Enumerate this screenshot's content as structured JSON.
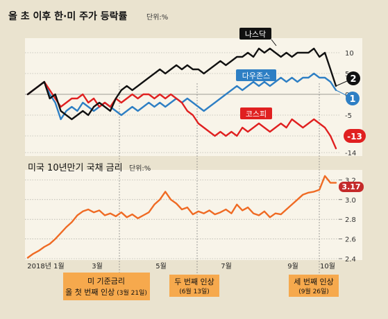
{
  "colors": {
    "background": "#eae3cf",
    "panel": "#f8f4e9",
    "grid": "#9c9a94",
    "nasdaq": "#111111",
    "dow": "#2e7fc4",
    "kospi": "#e02020",
    "treasury": "#ef6a23",
    "treasury_end": "#c42a2a",
    "event_box": "#f6a94d",
    "text": "#222222"
  },
  "chart_data": [
    {
      "type": "line",
      "title": "올 초 이후 한·미 주가 등락률",
      "unit_label": "단위:%",
      "x_ticks": [],
      "y_ticks": [
        10,
        5,
        0,
        -5,
        -10,
        -14
      ],
      "ylim": [
        -14.5,
        13
      ],
      "grid": "horizontal-dashed",
      "series": [
        {
          "name": "나스닥",
          "color": "#111111",
          "end_value": 2,
          "end_label": "2",
          "values": [
            0,
            1,
            2,
            3,
            -1,
            0,
            -4,
            -5,
            -6,
            -5,
            -4,
            -5,
            -3,
            -2,
            -3,
            -4,
            -1,
            1,
            2,
            1,
            2,
            3,
            4,
            5,
            6,
            5,
            6,
            7,
            6,
            7,
            6,
            6,
            5,
            6,
            7,
            8,
            7,
            8,
            9,
            9,
            10,
            9,
            11,
            10,
            11,
            10,
            9,
            10,
            9,
            10,
            10,
            10,
            11,
            9,
            10,
            6,
            2
          ]
        },
        {
          "name": "다우존스",
          "color": "#2e7fc4",
          "end_value": 1,
          "end_label": "1",
          "values": [
            0,
            1,
            2,
            3,
            0,
            -2,
            -6,
            -4,
            -3,
            -4,
            -2,
            -3,
            -4,
            -3,
            -2,
            -3,
            -4,
            -5,
            -4,
            -3,
            -4,
            -3,
            -2,
            -3,
            -2,
            -3,
            -2,
            -1,
            -2,
            -1,
            -2,
            -3,
            -4,
            -3,
            -2,
            -1,
            0,
            1,
            2,
            1,
            2,
            3,
            2,
            3,
            2,
            3,
            4,
            3,
            4,
            3,
            4,
            4,
            5,
            4,
            4,
            3,
            1
          ]
        },
        {
          "name": "코스피",
          "color": "#e02020",
          "end_value": -13,
          "end_label": "-13",
          "values": [
            0,
            1,
            2,
            3,
            1,
            -1,
            -3,
            -2,
            -1,
            -1,
            0,
            -2,
            -1,
            -3,
            -2,
            -3,
            -1,
            -2,
            -1,
            0,
            -1,
            0,
            0,
            -1,
            0,
            -1,
            0,
            -1,
            -2,
            -4,
            -5,
            -7,
            -8,
            -9,
            -10,
            -9,
            -10,
            -9,
            -10,
            -8,
            -9,
            -8,
            -7,
            -8,
            -9,
            -8,
            -7,
            -8,
            -6,
            -7,
            -8,
            -7,
            -6,
            -7,
            -8,
            -10,
            -13
          ]
        }
      ]
    },
    {
      "type": "line",
      "title": "미국 10년만기 국채 금리",
      "unit_label": "단위:%",
      "x_ticks": [
        "2018년 1월",
        "3월",
        "5월",
        "7월",
        "9월",
        "10월"
      ],
      "y_ticks": [
        "3.2",
        "3.0",
        "2.8",
        "2.6",
        "2.4"
      ],
      "ylim": [
        2.4,
        3.28
      ],
      "grid": "horizontal-dashed",
      "series": [
        {
          "name": "",
          "color": "#ef6a23",
          "end_value": 3.17,
          "end_label": "3.17",
          "values": [
            2.41,
            2.45,
            2.48,
            2.52,
            2.55,
            2.6,
            2.66,
            2.72,
            2.77,
            2.84,
            2.88,
            2.9,
            2.87,
            2.89,
            2.84,
            2.86,
            2.83,
            2.87,
            2.82,
            2.85,
            2.81,
            2.84,
            2.87,
            2.95,
            3.0,
            3.08,
            3.0,
            2.96,
            2.9,
            2.92,
            2.85,
            2.88,
            2.86,
            2.89,
            2.85,
            2.87,
            2.9,
            2.86,
            2.95,
            2.89,
            2.92,
            2.86,
            2.84,
            2.88,
            2.82,
            2.86,
            2.85,
            2.9,
            2.95,
            3.0,
            3.05,
            3.07,
            3.08,
            3.1,
            3.24,
            3.17,
            3.17
          ]
        }
      ]
    }
  ],
  "events": [
    {
      "name": "기준금리 인상 1",
      "line1": "미 기준금리",
      "line2": "올 첫 번째 인상",
      "date": "(3월 21일)"
    },
    {
      "name": "기준금리 인상 2",
      "line1": "두 번째 인상",
      "line2": "",
      "date": "(6월 13일)"
    },
    {
      "name": "기준금리 인상 3",
      "line1": "세 번째 인상",
      "line2": "",
      "date": "(9월 26일)"
    }
  ]
}
